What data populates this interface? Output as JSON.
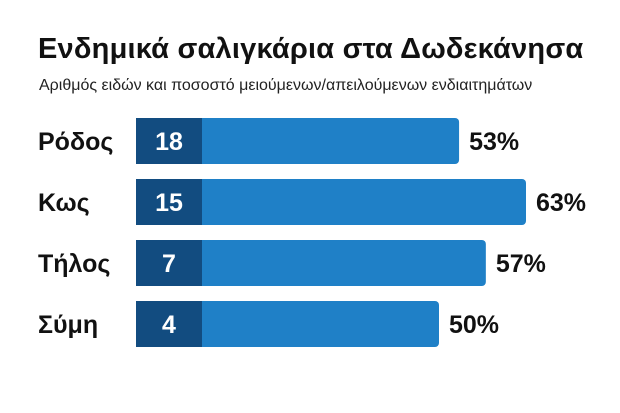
{
  "chart_data": {
    "type": "bar",
    "orientation": "horizontal",
    "title": "Ενδημικά σαλιγκάρια στα Δωδεκάνησα",
    "subtitle": "Αριθμός ειδών και ποσοστό μειούμενων/απειλούμενων ενδιαιτημάτων",
    "categories": [
      "Ρόδος",
      "Κως",
      "Τήλος",
      "Σύμη"
    ],
    "series": [
      {
        "values": [
          18,
          15,
          7,
          4
        ]
      },
      {
        "values": [
          53,
          63,
          57,
          50
        ],
        "unit": "%"
      }
    ],
    "value_labels": [
      "18",
      "15",
      "7",
      "4"
    ],
    "percent_labels": [
      "53%",
      "63%",
      "57%",
      "50%"
    ],
    "legend": "none",
    "grid": false,
    "colors": {
      "bar": "#1f80c7",
      "value_box": "#124c80",
      "text_dark": "#111111",
      "text_light": "#ffffff"
    }
  }
}
